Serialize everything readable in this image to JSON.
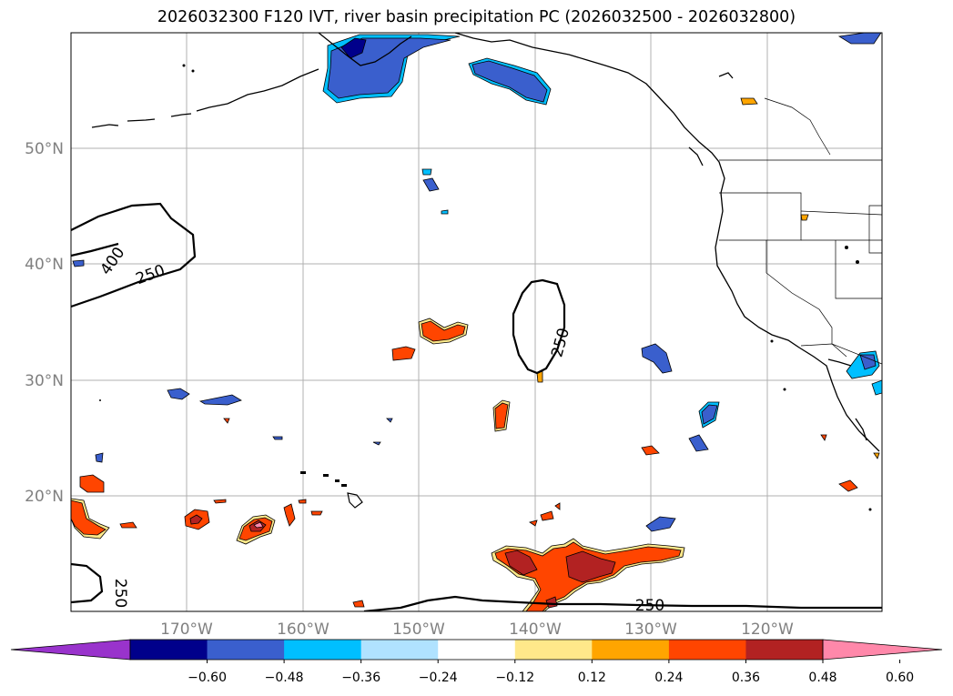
{
  "title": "2026032300 F120 IVT, river basin precipitation PC (2026032500 - 2026032800)",
  "latitude_labels": [
    "50°N",
    "40°N",
    "30°N",
    "20°N"
  ],
  "longitude_labels": [
    "170°W",
    "160°W",
    "150°W",
    "140°W",
    "130°W",
    "120°W"
  ],
  "ivt_contour_labels": [
    "400",
    "250",
    "250",
    "250",
    "250"
  ],
  "colorbar": {
    "ticks": [
      "−0.60",
      "−0.48",
      "−0.36",
      "−0.24",
      "−0.12",
      "0.12",
      "0.24",
      "0.36",
      "0.48",
      "0.60"
    ],
    "colors": [
      "#9933cc",
      "#00008b",
      "#3a5fcd",
      "#00bfff",
      "#b0e2ff",
      "#ffffff",
      "#ffe88a",
      "#ffa500",
      "#ff4500",
      "#b22222",
      "#ff88aa"
    ]
  }
}
